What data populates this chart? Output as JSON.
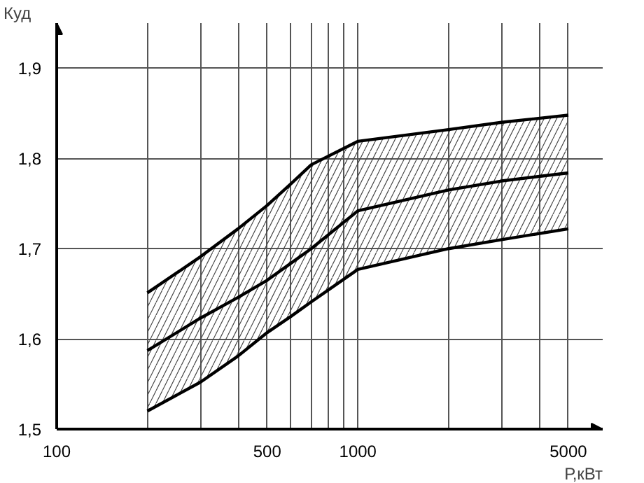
{
  "chart_data": {
    "type": "line",
    "xlabel": "Р,кВт",
    "ylabel": "Куд",
    "x": [
      200,
      300,
      400,
      500,
      600,
      700,
      1000,
      2000,
      3000,
      5000
    ],
    "series": [
      {
        "color": "#000000",
        "values": [
          1.587,
          1.623,
          1.646,
          1.665,
          1.684,
          1.7,
          1.742,
          1.765,
          1.775,
          1.784
        ],
        "lower": [
          1.52,
          1.552,
          1.581,
          1.607,
          1.625,
          1.641,
          1.677,
          1.7,
          1.71,
          1.722
        ],
        "upper": [
          1.651,
          1.691,
          1.722,
          1.748,
          1.772,
          1.793,
          1.819,
          1.832,
          1.84,
          1.848
        ]
      },
      {
        "color": "#000000",
        "values": [
          1.651,
          1.691,
          1.722,
          1.748,
          1.772,
          1.793,
          1.819,
          1.832,
          1.84,
          1.848
        ]
      },
      {
        "color": "#000000",
        "values": [
          1.52,
          1.552,
          1.581,
          1.607,
          1.625,
          1.641,
          1.677,
          1.7,
          1.71,
          1.722
        ]
      }
    ],
    "log": "x",
    "xlim": [
      100,
      6500
    ],
    "ylim": [
      1.5,
      1.95
    ],
    "xticks": [
      100,
      {
        "value": 200,
        "label": null
      },
      {
        "value": 300,
        "label": null
      },
      {
        "value": 400,
        "label": null
      },
      500,
      {
        "value": 600,
        "label": null
      },
      {
        "value": 700,
        "label": null
      },
      {
        "value": 800,
        "label": null
      },
      {
        "value": 900,
        "label": null
      },
      1000,
      {
        "value": 2000,
        "label": null
      },
      {
        "value": 3000,
        "label": null
      },
      {
        "value": 4000,
        "label": null
      },
      5000
    ],
    "yticks": [
      {
        "value": 1.5,
        "label": "1,5"
      },
      {
        "value": 1.6,
        "label": "1,6"
      },
      {
        "value": 1.7,
        "label": "1,7"
      },
      {
        "value": 1.8,
        "label": "1,8"
      },
      {
        "value": 1.9,
        "label": "1,9"
      }
    ],
    "grid": true,
    "marker": "none",
    "line_style": "solid"
  }
}
